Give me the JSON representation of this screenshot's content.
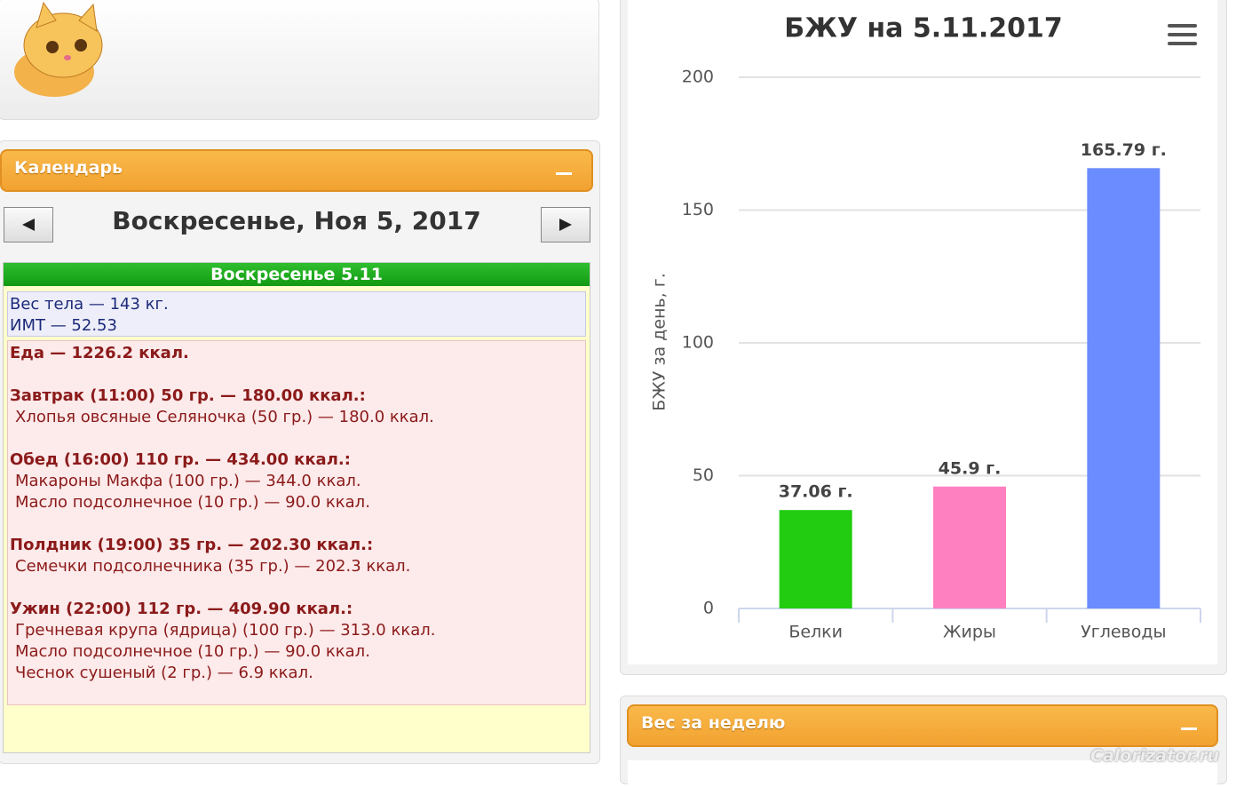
{
  "calendar": {
    "title": "Календарь",
    "date_heading": "Воскресенье, Ноя 5, 2017"
  },
  "day": {
    "header": "Воскресенье 5.11",
    "weight": [
      "Вес тела — 143 кг.",
      "ИМТ — 52.53"
    ],
    "food_total": "Еда — 1226.2 ккал.",
    "meals": [
      {
        "title": "Завтрак (11:00) 50 гр. — 180.00 ккал.:",
        "items": [
          "Хлопья овсяные Селяночка (50 гр.) — 180.0 ккал."
        ]
      },
      {
        "title": "Обед (16:00) 110 гр. — 434.00 ккал.:",
        "items": [
          "Макароны Макфа (100 гр.) — 344.0 ккал.",
          "Масло подсолнечное (10 гр.) — 90.0 ккал."
        ]
      },
      {
        "title": "Полдник (19:00) 35 гр. — 202.30 ккал.:",
        "items": [
          "Семечки подсолнечника (35 гр.) — 202.3 ккал."
        ]
      },
      {
        "title": "Ужин (22:00) 112 гр. — 409.90 ккал.:",
        "items": [
          "Гречневая крупа (ядрица) (100 гр.) — 313.0 ккал.",
          "Масло подсолнечное (10 гр.) — 90.0 ккал.",
          "Чеснок сушеный (2 гр.) — 6.9 ккал."
        ]
      }
    ]
  },
  "chart_data": {
    "type": "bar",
    "title": "БЖУ на 5.11.2017",
    "y_label": "БЖУ за день, г.",
    "categories": [
      "Белки",
      "Жиры",
      "Углеводы"
    ],
    "values": [
      37.06,
      45.9,
      165.79
    ],
    "value_labels": [
      "37.06 г.",
      "45.9 г.",
      "165.79 г."
    ],
    "colors": [
      "#22cc11",
      "#ff80c0",
      "#6b8cff"
    ],
    "ylim": [
      0,
      200
    ],
    "yticks": [
      0,
      50,
      100,
      150,
      200
    ],
    "grid": true
  },
  "weight_panel": {
    "title": "Вес за неделю"
  },
  "watermark": "Calorizator.ru"
}
